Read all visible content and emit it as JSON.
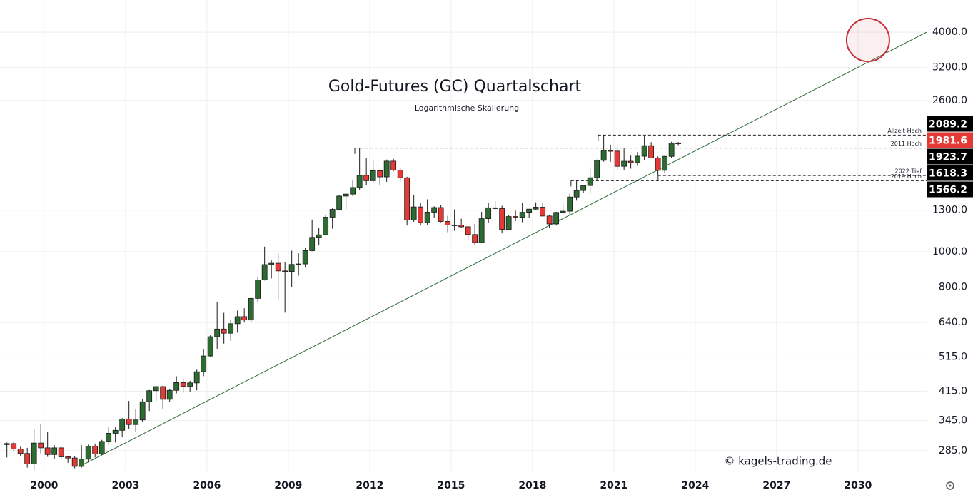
{
  "chart_data": {
    "type": "candlestick",
    "title": "Gold-Futures (GC) Quartalschart",
    "subtitle": "Logarithmische Skalierung",
    "watermark": "© kagels-trading.de",
    "log_scale": true,
    "grid": true,
    "xlim": [
      1998.37,
      2032.53
    ],
    "ylim": [
      251,
      4900
    ],
    "xticks": [
      2000,
      2003,
      2006,
      2009,
      2012,
      2015,
      2018,
      2021,
      2024,
      2027,
      2030
    ],
    "yticks": [
      {
        "value": 285,
        "label": "285.0"
      },
      {
        "value": 345,
        "label": "345.0"
      },
      {
        "value": 415,
        "label": "415.0"
      },
      {
        "value": 515,
        "label": "515.0"
      },
      {
        "value": 640,
        "label": "640.0"
      },
      {
        "value": 800,
        "label": "800.0"
      },
      {
        "value": 1000,
        "label": "1000.0"
      },
      {
        "value": 1300,
        "label": "1300.0"
      },
      {
        "value": 2600,
        "label": "2600.0"
      },
      {
        "value": 3200,
        "label": "3200.0"
      },
      {
        "value": 4000,
        "label": "4000.0"
      }
    ],
    "up_color": "#2e6b33",
    "down_color": "#e53935",
    "x": [
      1998.625,
      1998.875,
      1999.125,
      1999.375,
      1999.625,
      1999.875,
      2000.125,
      2000.375,
      2000.625,
      2000.875,
      2001.125,
      2001.375,
      2001.625,
      2001.875,
      2002.125,
      2002.375,
      2002.625,
      2002.875,
      2003.125,
      2003.375,
      2003.625,
      2003.875,
      2004.125,
      2004.375,
      2004.625,
      2004.875,
      2005.125,
      2005.375,
      2005.625,
      2005.875,
      2006.125,
      2006.375,
      2006.625,
      2006.875,
      2007.125,
      2007.375,
      2007.625,
      2007.875,
      2008.125,
      2008.375,
      2008.625,
      2008.875,
      2009.125,
      2009.375,
      2009.625,
      2009.875,
      2010.125,
      2010.375,
      2010.625,
      2010.875,
      2011.125,
      2011.375,
      2011.625,
      2011.875,
      2012.125,
      2012.375,
      2012.625,
      2012.875,
      2013.125,
      2013.375,
      2013.625,
      2013.875,
      2014.125,
      2014.375,
      2014.625,
      2014.875,
      2015.125,
      2015.375,
      2015.625,
      2015.875,
      2016.125,
      2016.375,
      2016.625,
      2016.875,
      2017.125,
      2017.375,
      2017.625,
      2017.875,
      2018.125,
      2018.375,
      2018.625,
      2018.875,
      2019.125,
      2019.375,
      2019.625,
      2019.875,
      2020.125,
      2020.375,
      2020.625,
      2020.875,
      2021.125,
      2021.375,
      2021.625,
      2021.875,
      2022.125,
      2022.375,
      2022.625,
      2022.875,
      2023.125,
      2023.375
    ],
    "open": [
      296,
      298,
      288,
      280,
      262,
      299,
      290,
      278,
      290,
      274,
      272,
      258,
      270,
      293,
      279,
      302,
      318,
      324,
      348,
      336,
      346,
      388,
      416,
      427,
      394,
      417,
      438,
      428,
      437,
      469,
      518,
      585,
      614,
      598,
      635,
      664,
      650,
      745,
      837,
      922,
      930,
      886,
      883,
      923,
      926,
      1007,
      1095,
      1113,
      1244,
      1307,
      1421,
      1439,
      1500,
      1620,
      1566,
      1668,
      1604,
      1772,
      1675,
      1595,
      1223,
      1327,
      1202,
      1284,
      1322,
      1211,
      1184,
      1183,
      1171,
      1115,
      1060,
      1232,
      1320,
      1313,
      1152,
      1249,
      1242,
      1283,
      1309,
      1325,
      1253,
      1192,
      1282,
      1292,
      1413,
      1472,
      1519,
      1596,
      1781,
      1895,
      1888,
      1715,
      1771,
      1755,
      1828,
      1954,
      1807,
      1672,
      1826,
      1986
    ],
    "high": [
      300,
      301,
      292,
      290,
      326,
      338,
      320,
      295,
      292,
      276,
      275,
      295,
      296,
      298,
      305,
      330,
      330,
      350,
      390,
      370,
      395,
      418,
      430,
      430,
      420,
      456,
      447,
      443,
      475,
      540,
      590,
      730,
      680,
      650,
      690,
      700,
      750,
      850,
      1033,
      950,
      990,
      935,
      1007,
      990,
      1025,
      1226,
      1160,
      1265,
      1315,
      1431,
      1447,
      1577,
      1923.7,
      1803,
      1792,
      1680,
      1790,
      1798,
      1697,
      1605,
      1434,
      1362,
      1392,
      1332,
      1345,
      1255,
      1307,
      1232,
      1178,
      1191,
      1287,
      1362,
      1377,
      1337,
      1263,
      1296,
      1362,
      1310,
      1366,
      1365,
      1262,
      1287,
      1347,
      1442,
      1566.2,
      1524,
      1704,
      1789,
      2089.2,
      1966,
      1962,
      1920,
      1834,
      1877,
      2078,
      1998,
      1824,
      1833,
      2003,
      2000
    ],
    "low": [
      273,
      284,
      276,
      256,
      252,
      280,
      274,
      270,
      271,
      264,
      255,
      256,
      265,
      273,
      277,
      296,
      300,
      310,
      326,
      320,
      342,
      366,
      390,
      371,
      387,
      409,
      411,
      414,
      417,
      456,
      516,
      542,
      560,
      570,
      600,
      640,
      640,
      725,
      834,
      845,
      735,
      681,
      802,
      860,
      905,
      1003,
      1045,
      1107,
      1157,
      1300,
      1308,
      1420,
      1480,
      1523,
      1540,
      1527,
      1555,
      1662,
      1555,
      1180,
      1208,
      1180,
      1182,
      1240,
      1205,
      1131,
      1142,
      1162,
      1072,
      1046,
      1058,
      1200,
      1305,
      1123,
      1146,
      1214,
      1205,
      1236,
      1303,
      1250,
      1160,
      1180,
      1266,
      1266,
      1381,
      1446,
      1451,
      1568,
      1766,
      1764,
      1673,
      1677,
      1690,
      1721,
      1780,
      1805,
      1618.3,
      1641,
      1804,
      1960
    ],
    "close": [
      298,
      288,
      280,
      262,
      299,
      290,
      278,
      290,
      274,
      272,
      258,
      270,
      293,
      279,
      302,
      318,
      324,
      348,
      336,
      346,
      388,
      416,
      427,
      394,
      417,
      438,
      428,
      437,
      469,
      518,
      585,
      614,
      598,
      635,
      664,
      650,
      745,
      837,
      922,
      930,
      886,
      883,
      923,
      926,
      1007,
      1095,
      1113,
      1244,
      1307,
      1421,
      1439,
      1500,
      1620,
      1566,
      1668,
      1604,
      1772,
      1675,
      1595,
      1223,
      1327,
      1202,
      1284,
      1322,
      1211,
      1184,
      1183,
      1171,
      1115,
      1060,
      1232,
      1320,
      1313,
      1152,
      1249,
      1242,
      1283,
      1309,
      1325,
      1253,
      1192,
      1282,
      1292,
      1413,
      1472,
      1519,
      1596,
      1781,
      1895,
      1888,
      1715,
      1771,
      1755,
      1828,
      1954,
      1807,
      1672,
      1826,
      1986,
      1981.6
    ],
    "levels": [
      {
        "name": "Allzeit-Hoch",
        "value": 2089.2,
        "from": 2020.42
      },
      {
        "name": "2011 Hoch",
        "value": 1923.7,
        "from": 2011.45
      },
      {
        "name": "2022 Tief",
        "value": 1618.3,
        "from": 2022.63
      },
      {
        "name": "2019 Hoch",
        "value": 1566.2,
        "from": 2019.42
      }
    ],
    "last_price": 1981.6,
    "trendline": {
      "color": "#2e6b33",
      "x": [
        2001.26,
        2032.53
      ],
      "y": [
        257,
        4000
      ]
    },
    "target": {
      "x": 2030.37,
      "y": 3807,
      "color": "#c62f3a"
    }
  }
}
